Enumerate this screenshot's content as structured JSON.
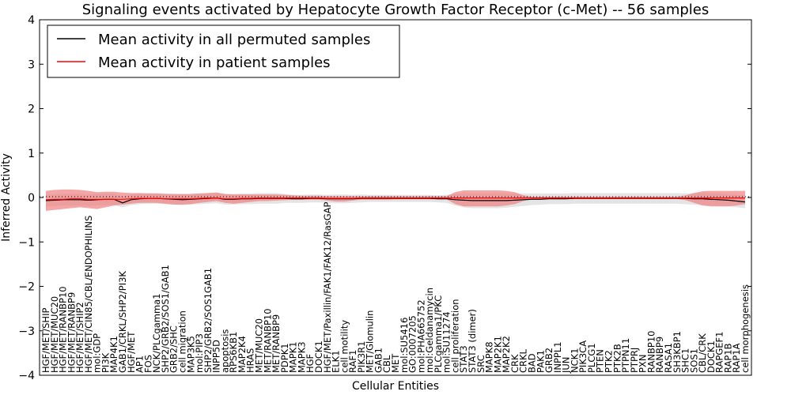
{
  "chart_data": {
    "type": "line",
    "title": "Signaling events activated by Hepatocyte Growth Factor Receptor (c-Met) -- 56 samples",
    "xlabel": "Cellular Entities",
    "ylabel": "Inferred Activity",
    "ylim": [
      -4,
      4
    ],
    "yticks": [
      "−4",
      "−3",
      "−2",
      "−1",
      "0",
      "1",
      "2",
      "3",
      "4"
    ],
    "ytick_values": [
      -4,
      -3,
      -2,
      -1,
      0,
      1,
      2,
      3,
      4
    ],
    "legend_position": "top-left",
    "colors": {
      "permuted": "#000000",
      "patient": "#ff0000",
      "band_permuted": "#dddddd",
      "band_patient": "#f08080",
      "zero_line": "#000000"
    },
    "categories": [
      "HGF/MET/SHIP",
      "HGF/MET/MUC20",
      "HGF/MET/RANBP10",
      "HGF/MET/RANBP9",
      "HGF/MET/SHIP2",
      "HGF/MET/CIN85/CBL/ENDOPHILINS",
      "mol:GDP",
      "PI3K",
      "MAP4K1",
      "GAB1/CRKL/SHP2/PI3K",
      "HGF/MET",
      "AP1",
      "FOS",
      "NCK/PLCgamma1",
      "SHP2/GRB2/SOS1/GAB1",
      "GRB2/SHC",
      "cell migration",
      "MAP3K5",
      "mol:PIP3",
      "SHP2/GRB2/SOS1GAB1",
      "INPP5D",
      "apoptosis",
      "RPS6KB1",
      "MAP2K4",
      "HRAS",
      "MET/MUC20",
      "MET/RANBP10",
      "MET/RANBP9",
      "PDPK1",
      "MAPK1",
      "MAPK3",
      "HGF",
      "DOCK1",
      "HGF/MET/Paxillin/FAK1/FAK12/RasGAP",
      "ELK1",
      "cell motility",
      "RAF1",
      "PIK3R1",
      "MET/Glomulin",
      "GAB1",
      "CBL",
      "MET",
      "mol:SU5416",
      "GO:0007205",
      "mol:PHA665752",
      "mol:Geldanamycin",
      "PLCgamma1/PKC",
      "mol:SU11274",
      "cell proliferation",
      "STAT3",
      "STAT3 (dimer)",
      "SRC",
      "MAPK8",
      "MAP2K1",
      "MAP2K2",
      "CRK",
      "CRKL",
      "BAD",
      "PAK1",
      "GRB2",
      "INPPL1",
      "JUN",
      "NCK1",
      "PIK3CA",
      "PLCG1",
      "PTEN",
      "PTK2",
      "PTK2B",
      "PTPN11",
      "PTPRJ",
      "PXN",
      "RANBP10",
      "RANBP9",
      "RASA1",
      "SH3KBP1",
      "SHC1",
      "SOS1",
      "CBL/CRK",
      "DOCK1",
      "RAPGEF1",
      "RAP1B",
      "RAP1A",
      "cell morphogenesis"
    ],
    "series": [
      {
        "name": "Mean activity in all permuted samples",
        "values": [
          -0.07,
          -0.06,
          -0.05,
          -0.05,
          -0.05,
          -0.06,
          -0.05,
          -0.04,
          -0.04,
          -0.12,
          -0.05,
          -0.03,
          -0.02,
          -0.02,
          -0.03,
          -0.04,
          -0.05,
          -0.04,
          -0.03,
          -0.02,
          -0.01,
          -0.04,
          -0.04,
          -0.03,
          -0.03,
          -0.02,
          -0.02,
          -0.02,
          -0.02,
          -0.03,
          -0.03,
          -0.02,
          -0.02,
          -0.03,
          -0.03,
          -0.03,
          -0.03,
          -0.02,
          -0.02,
          -0.02,
          -0.02,
          -0.02,
          -0.02,
          -0.02,
          -0.02,
          -0.02,
          -0.03,
          -0.03,
          -0.05,
          -0.06,
          -0.07,
          -0.07,
          -0.07,
          -0.07,
          -0.07,
          -0.06,
          -0.05,
          -0.04,
          -0.04,
          -0.03,
          -0.03,
          -0.03,
          -0.02,
          -0.02,
          -0.02,
          -0.02,
          -0.02,
          -0.02,
          -0.02,
          -0.02,
          -0.02,
          -0.02,
          -0.02,
          -0.02,
          -0.02,
          -0.02,
          -0.03,
          -0.03,
          -0.04,
          -0.05,
          -0.06,
          -0.08,
          -0.1
        ],
        "lower": [
          -0.2,
          -0.19,
          -0.18,
          -0.18,
          -0.18,
          -0.19,
          -0.18,
          -0.17,
          -0.17,
          -0.22,
          -0.17,
          -0.15,
          -0.14,
          -0.14,
          -0.15,
          -0.16,
          -0.17,
          -0.16,
          -0.15,
          -0.14,
          -0.13,
          -0.16,
          -0.16,
          -0.15,
          -0.15,
          -0.14,
          -0.14,
          -0.14,
          -0.12,
          -0.12,
          -0.12,
          -0.11,
          -0.11,
          -0.12,
          -0.13,
          -0.13,
          -0.12,
          -0.11,
          -0.1,
          -0.1,
          -0.1,
          -0.1,
          -0.1,
          -0.1,
          -0.1,
          -0.1,
          -0.11,
          -0.12,
          -0.18,
          -0.22,
          -0.24,
          -0.24,
          -0.24,
          -0.24,
          -0.23,
          -0.21,
          -0.19,
          -0.17,
          -0.16,
          -0.15,
          -0.15,
          -0.15,
          -0.14,
          -0.14,
          -0.14,
          -0.14,
          -0.14,
          -0.14,
          -0.14,
          -0.14,
          -0.14,
          -0.14,
          -0.14,
          -0.14,
          -0.14,
          -0.15,
          -0.16,
          -0.17,
          -0.18,
          -0.19,
          -0.2,
          -0.22,
          -0.24
        ],
        "upper": [
          0.06,
          0.07,
          0.08,
          0.08,
          0.08,
          0.07,
          0.08,
          0.09,
          0.09,
          0.02,
          0.07,
          0.09,
          0.1,
          0.1,
          0.09,
          0.08,
          0.07,
          0.08,
          0.09,
          0.1,
          0.11,
          0.08,
          0.08,
          0.09,
          0.09,
          0.1,
          0.1,
          0.1,
          0.08,
          0.06,
          0.06,
          0.07,
          0.07,
          0.06,
          0.07,
          0.07,
          0.06,
          0.07,
          0.06,
          0.06,
          0.06,
          0.06,
          0.06,
          0.06,
          0.06,
          0.06,
          0.05,
          0.06,
          0.08,
          0.1,
          0.1,
          0.1,
          0.1,
          0.1,
          0.09,
          0.09,
          0.09,
          0.09,
          0.09,
          0.09,
          0.09,
          0.09,
          0.1,
          0.1,
          0.1,
          0.1,
          0.1,
          0.1,
          0.1,
          0.1,
          0.1,
          0.1,
          0.1,
          0.1,
          0.1,
          0.09,
          0.1,
          0.11,
          0.1,
          0.09,
          0.08,
          0.06,
          0.04
        ]
      },
      {
        "name": "Mean activity in patient samples",
        "values": [
          -0.05,
          -0.04,
          -0.04,
          -0.03,
          -0.03,
          -0.04,
          -0.04,
          -0.04,
          -0.04,
          -0.04,
          -0.03,
          -0.02,
          -0.02,
          -0.02,
          -0.03,
          -0.03,
          -0.03,
          -0.03,
          -0.02,
          -0.01,
          -0.01,
          -0.03,
          -0.03,
          -0.02,
          -0.02,
          -0.01,
          -0.01,
          -0.01,
          -0.01,
          -0.01,
          -0.01,
          -0.01,
          -0.01,
          -0.02,
          -0.02,
          -0.02,
          -0.02,
          -0.01,
          -0.01,
          -0.01,
          -0.01,
          -0.01,
          -0.01,
          -0.01,
          -0.01,
          -0.01,
          -0.01,
          -0.01,
          -0.01,
          -0.01,
          -0.01,
          -0.01,
          -0.01,
          -0.01,
          -0.01,
          -0.01,
          -0.01,
          -0.01,
          -0.01,
          -0.01,
          -0.01,
          -0.01,
          -0.01,
          -0.01,
          -0.01,
          -0.01,
          -0.01,
          -0.01,
          -0.01,
          -0.01,
          -0.01,
          -0.01,
          -0.01,
          -0.01,
          -0.01,
          -0.01,
          -0.01,
          -0.01,
          -0.01,
          -0.01,
          -0.01,
          -0.01,
          -0.01
        ],
        "lower": [
          -0.3,
          -0.28,
          -0.26,
          -0.24,
          -0.22,
          -0.24,
          -0.26,
          -0.22,
          -0.18,
          -0.16,
          -0.14,
          -0.12,
          -0.12,
          -0.12,
          -0.14,
          -0.16,
          -0.16,
          -0.15,
          -0.12,
          -0.1,
          -0.08,
          -0.12,
          -0.14,
          -0.12,
          -0.1,
          -0.08,
          -0.08,
          -0.07,
          -0.06,
          -0.05,
          -0.05,
          -0.05,
          -0.05,
          -0.07,
          -0.09,
          -0.09,
          -0.07,
          -0.05,
          -0.05,
          -0.05,
          -0.05,
          -0.04,
          -0.04,
          -0.04,
          -0.04,
          -0.04,
          -0.04,
          -0.04,
          -0.15,
          -0.2,
          -0.2,
          -0.2,
          -0.2,
          -0.2,
          -0.18,
          -0.15,
          -0.08,
          -0.04,
          -0.03,
          -0.03,
          -0.03,
          -0.03,
          -0.03,
          -0.03,
          -0.03,
          -0.03,
          -0.03,
          -0.03,
          -0.03,
          -0.03,
          -0.03,
          -0.03,
          -0.03,
          -0.03,
          -0.03,
          -0.06,
          -0.12,
          -0.18,
          -0.2,
          -0.2,
          -0.2,
          -0.18,
          -0.15
        ],
        "upper": [
          0.15,
          0.17,
          0.18,
          0.18,
          0.17,
          0.15,
          0.12,
          0.13,
          0.13,
          0.11,
          0.1,
          0.1,
          0.09,
          0.09,
          0.08,
          0.08,
          0.08,
          0.08,
          0.09,
          0.1,
          0.11,
          0.08,
          0.07,
          0.07,
          0.07,
          0.07,
          0.07,
          0.07,
          0.06,
          0.05,
          0.04,
          0.04,
          0.04,
          0.03,
          0.03,
          0.03,
          0.03,
          0.03,
          0.03,
          0.03,
          0.03,
          0.03,
          0.03,
          0.03,
          0.03,
          0.03,
          0.03,
          0.03,
          0.12,
          0.16,
          0.16,
          0.16,
          0.16,
          0.16,
          0.15,
          0.12,
          0.05,
          0.02,
          0.02,
          0.02,
          0.02,
          0.02,
          0.02,
          0.02,
          0.02,
          0.02,
          0.02,
          0.02,
          0.02,
          0.02,
          0.02,
          0.02,
          0.02,
          0.02,
          0.02,
          0.05,
          0.1,
          0.14,
          0.15,
          0.15,
          0.15,
          0.15,
          0.15
        ]
      }
    ]
  }
}
